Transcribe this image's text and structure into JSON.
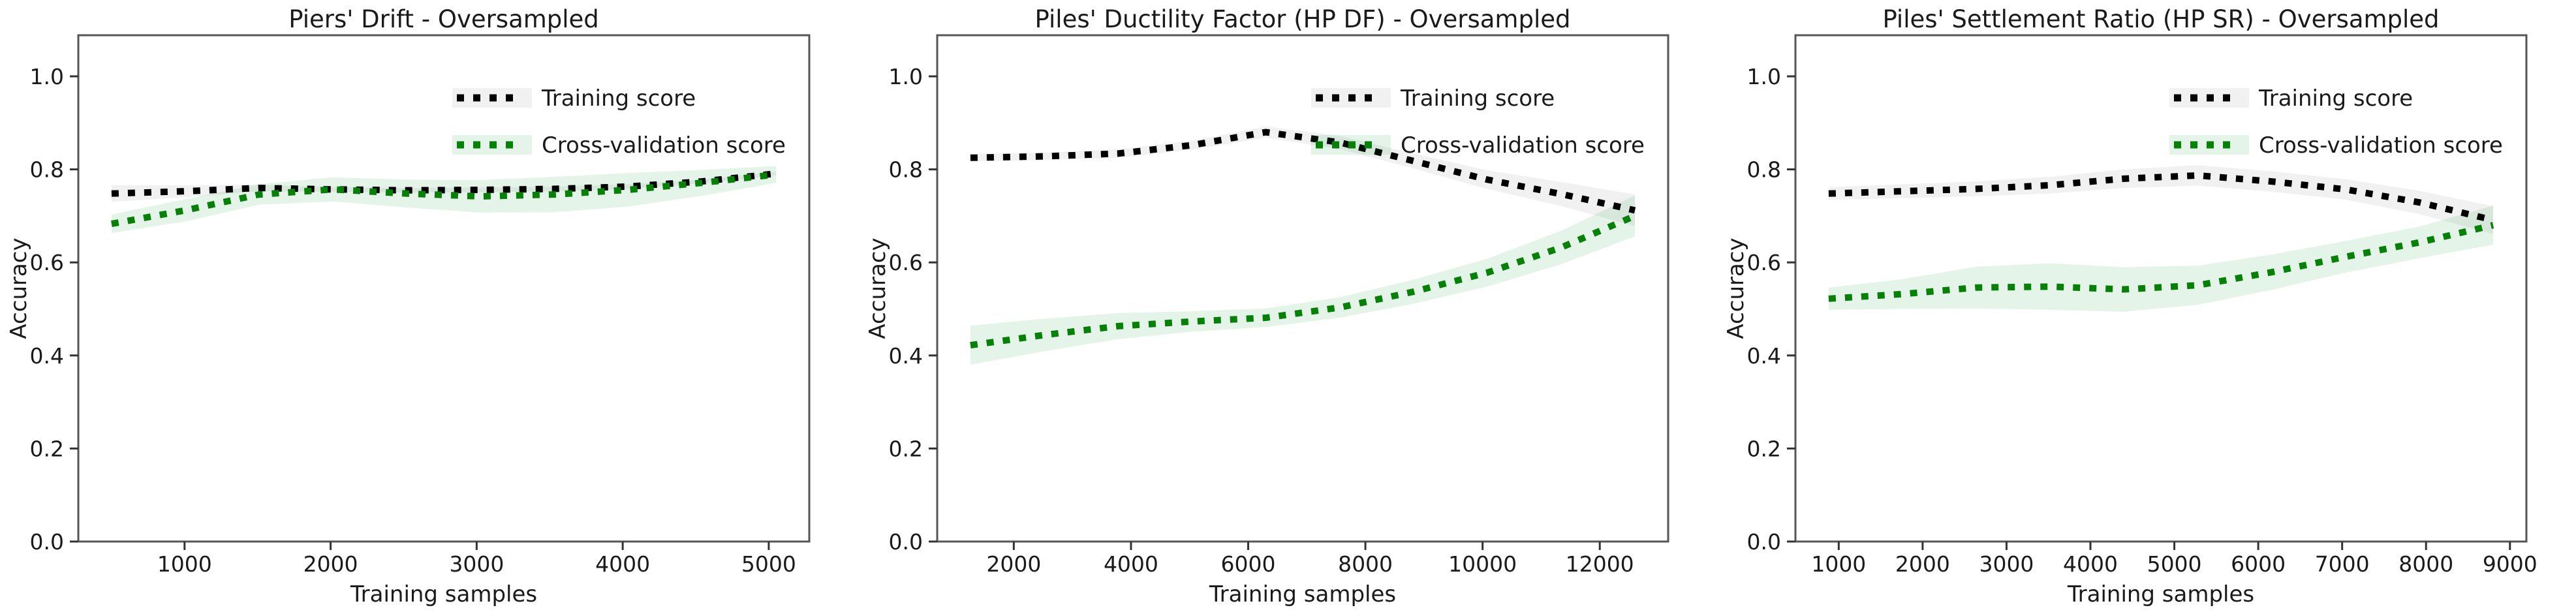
{
  "figure": {
    "background": "#ffffff",
    "text_color": "#1a1a1a",
    "spine_color": "#555555",
    "tick_color": "#333333",
    "yticks": [
      "0.0",
      "0.2",
      "0.4",
      "0.6",
      "0.8",
      "1.0"
    ],
    "legend": {
      "position": "upper-right",
      "items": [
        {
          "label": "Training score",
          "color": "#000000",
          "band_color": "rgba(0,0,0,0.055)"
        },
        {
          "label": "Cross-validation score",
          "color": "#068006",
          "band_color": "rgba(0,150,40,0.10)"
        }
      ]
    }
  },
  "chart_data": [
    {
      "type": "line",
      "title": "Piers' Drift - Oversampled",
      "xlabel": "Training samples",
      "ylabel": "Accuracy",
      "ylim": [
        0.0,
        1.088
      ],
      "grid": false,
      "xticks": [
        1000,
        2000,
        3000,
        4000,
        5000
      ],
      "x": [
        500,
        1005,
        1510,
        2015,
        2520,
        3025,
        3530,
        4035,
        4540,
        5050
      ],
      "series": [
        {
          "name": "Training score",
          "style": "dotted",
          "color": "#000000",
          "values": [
            0.748,
            0.753,
            0.76,
            0.757,
            0.755,
            0.756,
            0.758,
            0.763,
            0.774,
            0.791
          ],
          "std": [
            0.018,
            0.013,
            0.007,
            0.005,
            0.005,
            0.005,
            0.005,
            0.005,
            0.004,
            0.004
          ]
        },
        {
          "name": "Cross-validation score",
          "style": "dotted",
          "color": "#068006",
          "values": [
            0.683,
            0.712,
            0.746,
            0.757,
            0.748,
            0.742,
            0.746,
            0.756,
            0.771,
            0.789
          ],
          "std": [
            0.02,
            0.024,
            0.022,
            0.026,
            0.03,
            0.035,
            0.038,
            0.036,
            0.028,
            0.018
          ]
        }
      ]
    },
    {
      "type": "line",
      "title": "Piles' Ductility Factor (HP DF) - Oversampled",
      "xlabel": "Training samples",
      "ylabel": "Accuracy",
      "ylim": [
        0.0,
        1.088
      ],
      "grid": false,
      "xticks": [
        2000,
        4000,
        6000,
        8000,
        10000,
        12000
      ],
      "x": [
        1260,
        2520,
        3780,
        5040,
        6300,
        7560,
        8820,
        10080,
        11340,
        12600
      ],
      "series": [
        {
          "name": "Training score",
          "style": "dotted",
          "color": "#000000",
          "values": [
            0.825,
            0.828,
            0.834,
            0.852,
            0.88,
            0.858,
            0.818,
            0.778,
            0.747,
            0.712
          ],
          "std": [
            0.008,
            0.008,
            0.009,
            0.01,
            0.012,
            0.014,
            0.016,
            0.02,
            0.026,
            0.034
          ]
        },
        {
          "name": "Cross-validation score",
          "style": "dotted",
          "color": "#068006",
          "values": [
            0.422,
            0.444,
            0.463,
            0.473,
            0.481,
            0.503,
            0.537,
            0.578,
            0.632,
            0.7
          ],
          "std": [
            0.042,
            0.035,
            0.028,
            0.022,
            0.02,
            0.022,
            0.026,
            0.03,
            0.036,
            0.044
          ]
        }
      ]
    },
    {
      "type": "line",
      "title": "Piles' Settlement Ratio (HP SR) - Oversampled",
      "xlabel": "Training samples",
      "ylabel": "Accuracy",
      "ylim": [
        0.0,
        1.088
      ],
      "grid": false,
      "xticks": [
        1000,
        2000,
        3000,
        4000,
        5000,
        6000,
        7000,
        8000,
        9000
      ],
      "x": [
        880,
        1760,
        2640,
        3520,
        4400,
        5280,
        6160,
        7040,
        7920,
        8800
      ],
      "series": [
        {
          "name": "Training score",
          "style": "dotted",
          "color": "#000000",
          "values": [
            0.748,
            0.753,
            0.758,
            0.766,
            0.78,
            0.787,
            0.774,
            0.757,
            0.729,
            0.691
          ],
          "std": [
            0.014,
            0.015,
            0.016,
            0.018,
            0.02,
            0.022,
            0.022,
            0.022,
            0.025,
            0.03
          ]
        },
        {
          "name": "Cross-validation score",
          "style": "dotted",
          "color": "#068006",
          "values": [
            0.522,
            0.532,
            0.546,
            0.548,
            0.542,
            0.551,
            0.579,
            0.612,
            0.643,
            0.68
          ],
          "std": [
            0.024,
            0.032,
            0.045,
            0.05,
            0.048,
            0.042,
            0.038,
            0.034,
            0.034,
            0.042
          ]
        }
      ]
    }
  ]
}
